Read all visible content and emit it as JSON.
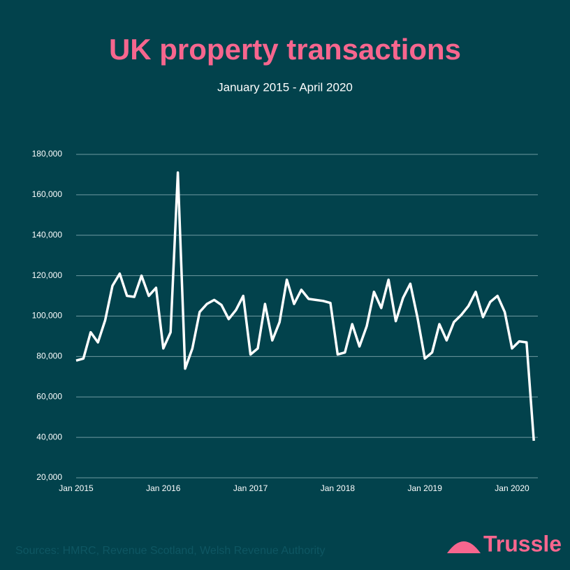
{
  "chart_data": {
    "type": "line",
    "title": "UK property transactions",
    "subtitle": "January 2015 - April 2020",
    "source": "Sources: HMRC, Revenue Scotland, Welsh Revenue Authority",
    "logo": "Trussle",
    "categories": [
      "Jan 2015",
      null,
      null,
      null,
      null,
      null,
      null,
      null,
      null,
      null,
      null,
      null,
      "Jan 2016",
      null,
      null,
      null,
      null,
      null,
      null,
      null,
      null,
      null,
      null,
      null,
      "Jan 2017",
      null,
      null,
      null,
      null,
      null,
      null,
      null,
      null,
      null,
      null,
      null,
      "Jan 2018",
      null,
      null,
      null,
      null,
      null,
      null,
      null,
      null,
      null,
      null,
      null,
      "Jan 2019",
      null,
      null,
      null,
      null,
      null,
      null,
      null,
      null,
      null,
      null,
      null,
      "Jan 2020",
      null,
      null,
      null
    ],
    "series": [
      {
        "name": "Transactions",
        "color": "#ffffff",
        "values": [
          78000,
          79000,
          92000,
          87000,
          98000,
          115000,
          121000,
          110000,
          109500,
          120000,
          110000,
          114000,
          84000,
          92000,
          171000,
          74000,
          84000,
          102000,
          106000,
          108000,
          105500,
          98500,
          103000,
          110000,
          81000,
          84000,
          106000,
          88000,
          97000,
          118000,
          106000,
          113000,
          108500,
          108000,
          107500,
          106500,
          81000,
          82000,
          96000,
          85000,
          95000,
          112000,
          104000,
          118000,
          97500,
          109000,
          116000,
          99000,
          79000,
          82000,
          96000,
          88000,
          97000,
          100500,
          105000,
          112000,
          99500,
          107000,
          110000,
          102000,
          84000,
          87500,
          87000,
          38300
        ]
      }
    ],
    "ylim": [
      20000,
      180000
    ],
    "yticks": [
      {
        "value": 20000,
        "label": "20,000"
      },
      {
        "value": 40000,
        "label": "40,000"
      },
      {
        "value": 60000,
        "label": "60,000"
      },
      {
        "value": 80000,
        "label": "80,000"
      },
      {
        "value": 100000,
        "label": "100,000"
      },
      {
        "value": 120000,
        "label": "120,000"
      },
      {
        "value": 140000,
        "label": "140,000"
      },
      {
        "value": 160000,
        "label": "160,000"
      },
      {
        "value": 180000,
        "label": "180,000"
      }
    ],
    "grid": true
  }
}
